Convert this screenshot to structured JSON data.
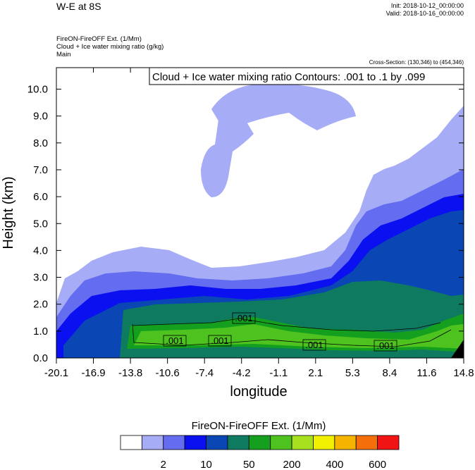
{
  "header": {
    "title": "W-E at 8S",
    "init": "Init: 2018-10-12_00:00:00",
    "valid": "Valid: 2018-10-16_00:00:00",
    "meta": [
      "FireON-FireOFF Ext.   (1/Mm)",
      "Cloud + Ice water mixing ratio   (g/kg)",
      "Main"
    ],
    "cross_section": "Cross-Section: (130,346) to (454,346)"
  },
  "chart_data": {
    "type": "heatmap",
    "contour_label": "Cloud + Ice water mixing ratio Contours: .001 to .1 by .099",
    "xlabel": "longitude",
    "ylabel": "Height (km)",
    "x_ticks": [
      "-20.1",
      "-16.9",
      "-13.8",
      "-10.6",
      "-7.4",
      "-4.2",
      "-1.1",
      "2.1",
      "5.3",
      "8.4",
      "11.6",
      "14.8"
    ],
    "y_ticks": [
      "0.0",
      "1.0",
      "2.0",
      "3.0",
      "4.0",
      "5.0",
      "6.0",
      "7.0",
      "8.0",
      "9.0",
      "10.0"
    ],
    "xlim": [
      -20.1,
      14.8
    ],
    "ylim": [
      0,
      10.8
    ],
    "contour_values": [
      ".001",
      ".001",
      ".001",
      ".001",
      ".001"
    ],
    "colorbar": {
      "title": "FireON-FireOFF Ext.  (1/Mm)",
      "colors": [
        "#ffffff",
        "#a6acf5",
        "#646cf0",
        "#0a10f0",
        "#0a46b4",
        "#0e7a60",
        "#14a01e",
        "#4ec21e",
        "#a6e01e",
        "#f0f000",
        "#f4b400",
        "#f46e0a",
        "#f01414"
      ],
      "tick_labels": [
        "2",
        "10",
        "50",
        "200",
        "400",
        "600"
      ]
    }
  }
}
